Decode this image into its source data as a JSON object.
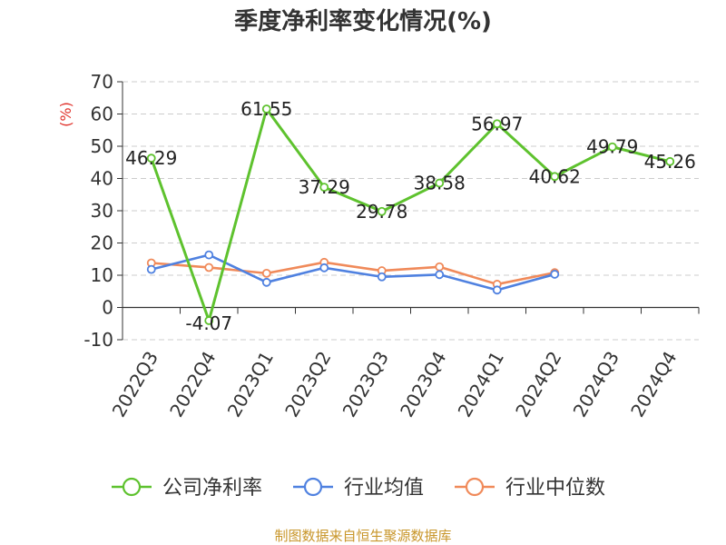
{
  "chart_data": {
    "type": "line",
    "title": "季度净利率变化情况(%)",
    "ylabel": "(%)",
    "xlabel": "",
    "ylim": [
      -10,
      70
    ],
    "yticks": [
      70,
      60,
      50,
      40,
      30,
      20,
      10,
      0,
      -10
    ],
    "categories": [
      "2022Q3",
      "2022Q4",
      "2023Q1",
      "2023Q2",
      "2023Q3",
      "2023Q4",
      "2024Q1",
      "2024Q2",
      "2024Q3",
      "2024Q4"
    ],
    "grid": true,
    "legend_position": "bottom",
    "series": [
      {
        "name": "公司净利率",
        "color": "#5ec22e",
        "values": [
          46.29,
          -4.07,
          61.55,
          37.29,
          29.78,
          38.58,
          56.97,
          40.62,
          49.79,
          45.26
        ],
        "labels": [
          "46.29",
          "-4.07",
          "61.55",
          "37.29",
          "29.78",
          "38.58",
          "56.97",
          "40.62",
          "49.79",
          "45.26"
        ]
      },
      {
        "name": "行业均值",
        "color": "#4f81e0",
        "values": [
          11.8,
          16.3,
          7.8,
          12.3,
          9.5,
          10.2,
          5.4,
          10.3,
          null,
          null
        ]
      },
      {
        "name": "行业中位数",
        "color": "#f08a5a",
        "values": [
          13.8,
          12.4,
          10.6,
          14.0,
          11.4,
          12.6,
          7.2,
          10.8,
          null,
          null
        ]
      }
    ]
  },
  "colors": {
    "ylabel": "#e0322b",
    "footer": "#c8962a",
    "grid": "#cccccc",
    "axis": "#333333"
  },
  "footer": "制图数据来自恒生聚源数据库"
}
